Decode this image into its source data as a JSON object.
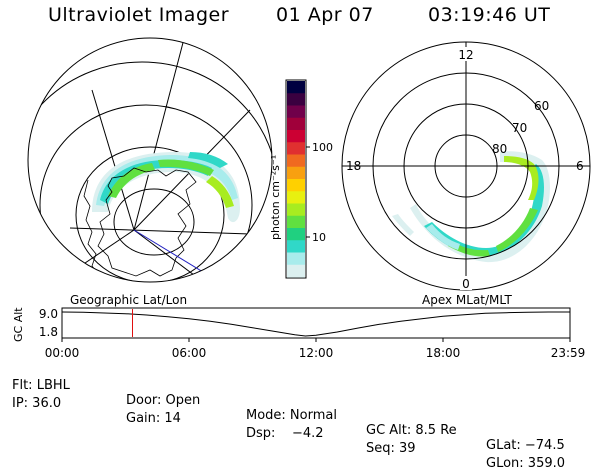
{
  "header": {
    "instrument": "Ultraviolet Imager",
    "date": "01 Apr 07",
    "time": "03:19:46 UT"
  },
  "left_map": {
    "label": "Geographic Lat/Lon"
  },
  "right_map": {
    "label": "Apex MLat/MLT",
    "mlt_labels": [
      "12",
      "18",
      "6",
      "0"
    ],
    "lat_labels": [
      "60",
      "70",
      "80"
    ]
  },
  "colorbar": {
    "unit_label": "photon cm⁻²s⁻¹",
    "ticks": [
      "100",
      "10"
    ],
    "colors": [
      "#000040",
      "#3a0040",
      "#70004a",
      "#a0003a",
      "#cc0033",
      "#e03030",
      "#f06a20",
      "#f8a010",
      "#ffd000",
      "#e8f010",
      "#a8ec20",
      "#60e040",
      "#20d080",
      "#30d8c8",
      "#a8ecec",
      "#dcf0f0"
    ]
  },
  "altitude_panel": {
    "ylabel": "GC Alt",
    "y_ticks": [
      "9.0",
      "1.8"
    ],
    "x_ticks": [
      "00:00",
      "06:00",
      "12:00",
      "18:00",
      "23:59"
    ]
  },
  "info": {
    "row1": {
      "flt": "Flt: LBHL",
      "door": "Door: Open",
      "mode": "Mode: Normal",
      "gcalt": "GC Alt: 8.5 Re",
      "glat": "GLat: −74.5"
    },
    "row2": {
      "ip": "IP: 36.0",
      "gain": "Gain: 14",
      "dsp": "Dsp:    −4.2",
      "seq": "Seq: 39",
      "glon": "GLon: 359.0"
    }
  },
  "chart_data": {
    "type": "line",
    "title": "",
    "xlabel": "",
    "ylabel": "GC Alt",
    "x_tick_labels": [
      "00:00",
      "06:00",
      "12:00",
      "18:00",
      "23:59"
    ],
    "xlim_hours": [
      0,
      24
    ],
    "ylim": [
      1.8,
      9.0
    ],
    "series": [
      {
        "x": [
          0,
          1,
          2,
          3,
          4,
          5,
          6,
          7,
          8,
          9,
          10,
          11,
          11.5,
          12,
          13,
          14,
          15,
          16,
          17,
          18,
          19,
          20,
          21,
          22,
          23,
          24
        ],
        "y": [
          9.0,
          8.9,
          8.7,
          8.5,
          8.1,
          7.6,
          7.0,
          6.2,
          5.3,
          4.3,
          3.2,
          2.2,
          1.8,
          2.0,
          3.0,
          4.2,
          5.3,
          6.2,
          7.0,
          7.7,
          8.2,
          8.6,
          8.8,
          8.9,
          9.0,
          9.0
        ]
      }
    ],
    "marker_time_hours": 3.33
  }
}
